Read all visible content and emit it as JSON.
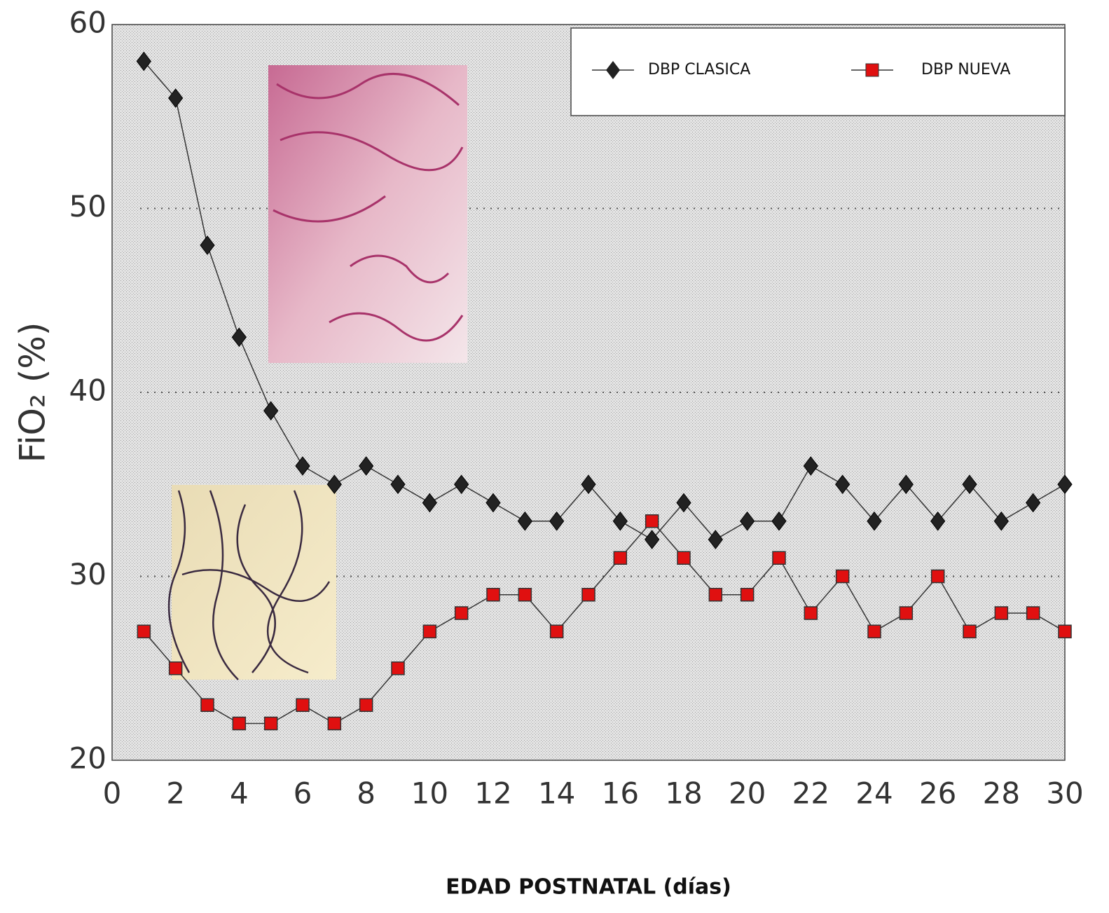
{
  "chart_data": {
    "type": "line",
    "x_label": "EDAD POSTNATAL (días)",
    "y_label": "FiO₂ (%)",
    "x": [
      1,
      2,
      3,
      4,
      5,
      6,
      7,
      8,
      9,
      10,
      11,
      12,
      13,
      14,
      15,
      16,
      17,
      18,
      19,
      20,
      21,
      22,
      23,
      24,
      25,
      26,
      27,
      28,
      29,
      30
    ],
    "series": [
      {
        "name": "DBP CLASICA",
        "color": "#222222",
        "marker": "diamond",
        "values": [
          58,
          56,
          48,
          43,
          39,
          36,
          35,
          36,
          35,
          34,
          35,
          34,
          33,
          33,
          35,
          33,
          32,
          34,
          32,
          33,
          33,
          36,
          35,
          33,
          35,
          33,
          35,
          33,
          34,
          35
        ]
      },
      {
        "name": "DBP NUEVA",
        "color": "#e01010",
        "marker": "square",
        "values": [
          27,
          25,
          23,
          22,
          22,
          23,
          22,
          23,
          25,
          27,
          28,
          29,
          29,
          27,
          29,
          31,
          33,
          31,
          29,
          29,
          31,
          28,
          30,
          27,
          28,
          30,
          27,
          28,
          28,
          27
        ]
      }
    ],
    "xlim": [
      0,
      30
    ],
    "xticks": [
      0,
      2,
      4,
      6,
      8,
      10,
      12,
      14,
      16,
      18,
      20,
      22,
      24,
      26,
      28,
      30
    ],
    "ylim": [
      20,
      60
    ],
    "yticks": [
      20,
      30,
      40,
      50,
      60
    ],
    "grid": true,
    "legend": "top-right"
  }
}
